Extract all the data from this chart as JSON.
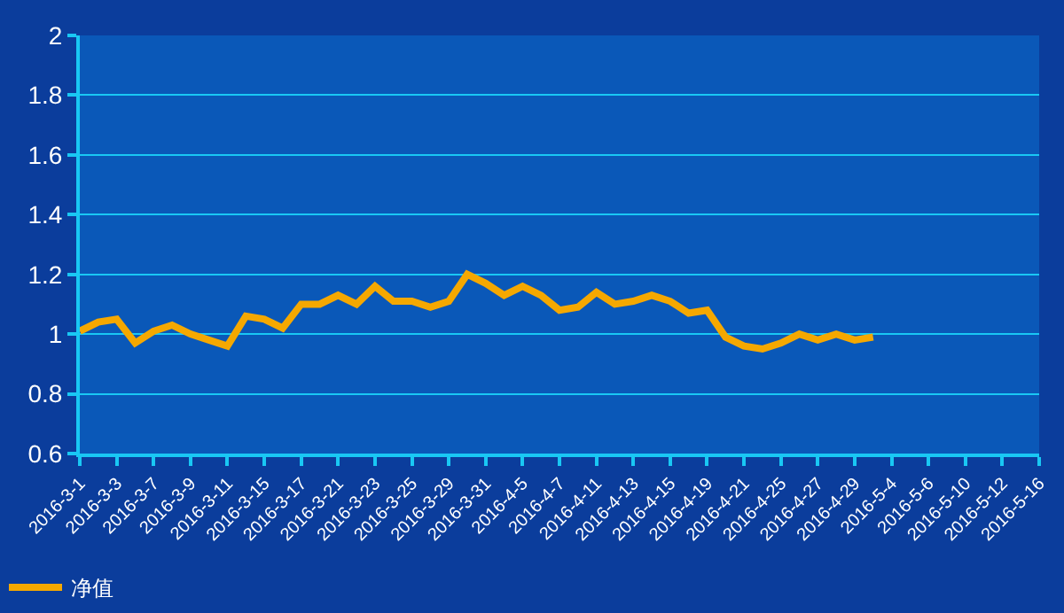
{
  "chart_data": {
    "type": "line",
    "categories": [
      "2016-3-1",
      null,
      "2016-3-3",
      null,
      "2016-3-7",
      null,
      "2016-3-9",
      null,
      "2016-3-11",
      null,
      "2016-3-15",
      null,
      "2016-3-17",
      null,
      "2016-3-21",
      null,
      "2016-3-23",
      null,
      "2016-3-25",
      null,
      "2016-3-29",
      null,
      "2016-3-31",
      null,
      "2016-4-5",
      null,
      "2016-4-7",
      null,
      "2016-4-11",
      null,
      "2016-4-13",
      null,
      "2016-4-15",
      null,
      "2016-4-19",
      null,
      "2016-4-21",
      null,
      "2016-4-25",
      null,
      "2016-4-27",
      null,
      "2016-4-29",
      null,
      "2016-5-4",
      null,
      "2016-5-6",
      null,
      "2016-5-10",
      null,
      "2016-5-12",
      null,
      "2016-5-16"
    ],
    "series": [
      {
        "name": "净值",
        "color": "#f5a800",
        "values": [
          1.01,
          1.04,
          1.05,
          0.97,
          1.01,
          1.03,
          1.0,
          0.98,
          0.96,
          1.06,
          1.05,
          1.02,
          1.1,
          1.1,
          1.13,
          1.1,
          1.16,
          1.11,
          1.11,
          1.09,
          1.11,
          1.2,
          1.17,
          1.13,
          1.16,
          1.13,
          1.08,
          1.09,
          1.14,
          1.1,
          1.11,
          1.13,
          1.11,
          1.07,
          1.08,
          0.99,
          0.96,
          0.95,
          0.97,
          1.0,
          0.98,
          1.0,
          0.98,
          0.99,
          null,
          null,
          null,
          null,
          null,
          null,
          null,
          null,
          null
        ]
      }
    ],
    "ylim": [
      0.6,
      2
    ],
    "yticks": [
      0.6,
      0.8,
      1,
      1.2,
      1.4,
      1.6,
      1.8,
      2
    ],
    "grid": "y",
    "legend": "bottom left",
    "marker": "none",
    "line_style": "solid"
  }
}
